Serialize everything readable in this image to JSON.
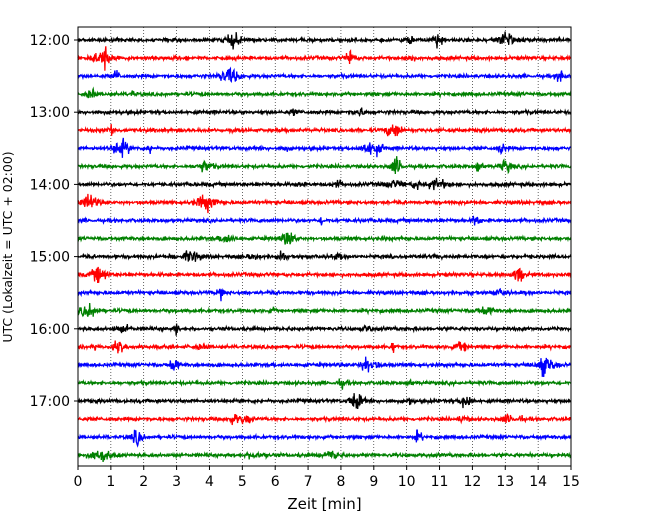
{
  "chart_data": {
    "type": "line",
    "title": "",
    "xlabel": "Zeit  [min]",
    "ylabel": "UTC (Lokalzeit = UTC + 02:00)",
    "xlim": [
      0,
      15
    ],
    "x_ticks": [
      "0",
      "1",
      "2",
      "3",
      "4",
      "5",
      "6",
      "7",
      "8",
      "9",
      "10",
      "11",
      "12",
      "13",
      "14",
      "15"
    ],
    "y_ticks": [
      "12:00",
      "13:00",
      "14:00",
      "15:00",
      "16:00",
      "17:00"
    ],
    "grid": "vertical dotted at each minute",
    "series_colors": [
      "#000000",
      "#ff0000",
      "#0000ff",
      "#008000"
    ],
    "traces": [
      {
        "start": "12:00",
        "color": "#000000"
      },
      {
        "start": "12:15",
        "color": "#ff0000"
      },
      {
        "start": "12:30",
        "color": "#0000ff"
      },
      {
        "start": "12:45",
        "color": "#008000"
      },
      {
        "start": "13:00",
        "color": "#000000"
      },
      {
        "start": "13:15",
        "color": "#ff0000"
      },
      {
        "start": "13:30",
        "color": "#0000ff"
      },
      {
        "start": "13:45",
        "color": "#008000"
      },
      {
        "start": "14:00",
        "color": "#000000"
      },
      {
        "start": "14:15",
        "color": "#ff0000"
      },
      {
        "start": "14:30",
        "color": "#0000ff"
      },
      {
        "start": "14:45",
        "color": "#008000"
      },
      {
        "start": "15:00",
        "color": "#000000"
      },
      {
        "start": "15:15",
        "color": "#ff0000"
      },
      {
        "start": "15:30",
        "color": "#0000ff"
      },
      {
        "start": "15:45",
        "color": "#008000"
      },
      {
        "start": "16:00",
        "color": "#000000"
      },
      {
        "start": "16:15",
        "color": "#ff0000"
      },
      {
        "start": "16:30",
        "color": "#0000ff"
      },
      {
        "start": "16:45",
        "color": "#008000"
      },
      {
        "start": "17:00",
        "color": "#000000"
      },
      {
        "start": "17:15",
        "color": "#ff0000"
      },
      {
        "start": "17:30",
        "color": "#0000ff"
      },
      {
        "start": "17:45",
        "color": "#008000"
      }
    ]
  }
}
